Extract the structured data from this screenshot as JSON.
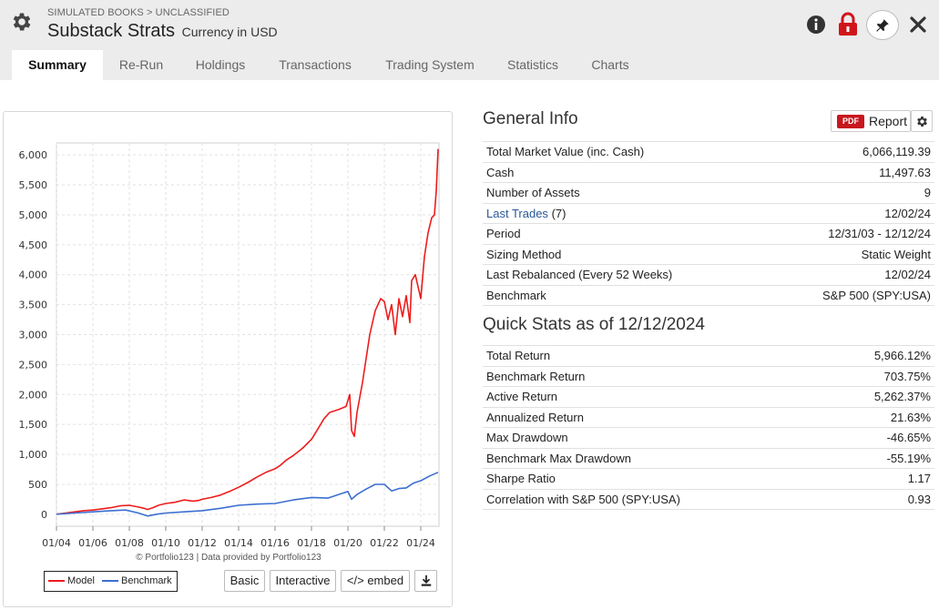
{
  "header": {
    "breadcrumb": "SIMULATED BOOKS > UNCLASSIFIED",
    "title": "Substack Strats",
    "currency": "Currency in USD"
  },
  "tabs": [
    "Summary",
    "Re-Run",
    "Holdings",
    "Transactions",
    "Trading System",
    "Statistics",
    "Charts"
  ],
  "chart": {
    "credit": "© Portfolio123 | Data provided by Portfolio123",
    "legend": {
      "model": "Model",
      "benchmark": "Benchmark"
    },
    "buttons": {
      "basic": "Basic",
      "interactive": "Interactive",
      "embed": "</> embed"
    }
  },
  "chart_data": {
    "type": "line",
    "title": "",
    "xlabel": "",
    "ylabel": "",
    "x_ticks": [
      "01/04",
      "01/06",
      "01/08",
      "01/10",
      "01/12",
      "01/14",
      "01/16",
      "01/18",
      "01/20",
      "01/22",
      "01/24"
    ],
    "y_ticks": [
      "0",
      "500",
      "1,000",
      "1,500",
      "2,000",
      "2,500",
      "3,000",
      "3,500",
      "4,000",
      "4,500",
      "5,000",
      "5,500",
      "6,000"
    ],
    "xlim": [
      2004.0,
      2025.0
    ],
    "ylim": [
      -200,
      6200
    ],
    "grid": true,
    "legend_position": "bottom-left",
    "series": [
      {
        "name": "Model",
        "color": "#ee1c1c",
        "x": [
          2004.0,
          2004.5,
          2005.0,
          2005.5,
          2006.0,
          2006.5,
          2007.0,
          2007.5,
          2008.0,
          2008.5,
          2008.8,
          2009.0,
          2009.3,
          2009.6,
          2010.0,
          2010.5,
          2011.0,
          2011.5,
          2011.8,
          2012.0,
          2012.5,
          2013.0,
          2013.5,
          2014.0,
          2014.5,
          2015.0,
          2015.5,
          2016.0,
          2016.3,
          2016.6,
          2017.0,
          2017.5,
          2018.0,
          2018.3,
          2018.7,
          2019.0,
          2019.5,
          2019.9,
          2020.1,
          2020.2,
          2020.35,
          2020.5,
          2020.8,
          2021.0,
          2021.2,
          2021.5,
          2021.8,
          2022.0,
          2022.2,
          2022.4,
          2022.6,
          2022.8,
          2023.0,
          2023.2,
          2023.4,
          2023.5,
          2023.7,
          2024.0,
          2024.2,
          2024.4,
          2024.6,
          2024.75,
          2024.85,
          2024.95
        ],
        "y": [
          0,
          20,
          40,
          60,
          70,
          90,
          110,
          140,
          150,
          120,
          100,
          80,
          110,
          150,
          180,
          200,
          240,
          220,
          230,
          250,
          280,
          320,
          380,
          450,
          530,
          620,
          700,
          760,
          820,
          900,
          980,
          1100,
          1250,
          1400,
          1600,
          1700,
          1750,
          1800,
          2000,
          1400,
          1300,
          1700,
          2200,
          2600,
          3000,
          3400,
          3600,
          3550,
          3250,
          3500,
          3000,
          3600,
          3300,
          3650,
          3200,
          3900,
          4000,
          3600,
          4300,
          4700,
          4950,
          5000,
          5400,
          6100
        ]
      },
      {
        "name": "Benchmark",
        "color": "#3c6fd1",
        "x": [
          2004.0,
          2005.0,
          2006.0,
          2007.0,
          2007.8,
          2008.5,
          2009.0,
          2009.5,
          2010.0,
          2011.0,
          2012.0,
          2013.0,
          2014.0,
          2015.0,
          2016.0,
          2017.0,
          2018.0,
          2018.9,
          2019.5,
          2020.0,
          2020.2,
          2020.5,
          2021.0,
          2021.5,
          2022.0,
          2022.4,
          2022.8,
          2023.2,
          2023.6,
          2024.0,
          2024.5,
          2024.95
        ],
        "y": [
          0,
          20,
          40,
          60,
          70,
          20,
          -30,
          0,
          20,
          40,
          60,
          100,
          150,
          170,
          180,
          240,
          280,
          270,
          330,
          380,
          250,
          330,
          420,
          500,
          500,
          390,
          430,
          440,
          520,
          560,
          640,
          700
        ]
      }
    ]
  },
  "general_info": {
    "title": "General Info",
    "pdf_badge": "PDF",
    "report_label": "Report",
    "rows": [
      {
        "label": "Total Market Value (inc. Cash)",
        "value": "6,066,119.39"
      },
      {
        "label": "Cash",
        "value": "11,497.63"
      },
      {
        "label": "Number of Assets",
        "value": "9"
      },
      {
        "label": "Last Trades",
        "label_suffix": "(7)",
        "value": "12/02/24",
        "link": true
      },
      {
        "label": "Period",
        "value": "12/31/03 - 12/12/24"
      },
      {
        "label": "Sizing Method",
        "value": "Static Weight"
      },
      {
        "label": "Last Rebalanced (Every 52 Weeks)",
        "value": "12/02/24"
      },
      {
        "label": "Benchmark",
        "value": "S&P 500 (SPY:USA)"
      }
    ]
  },
  "quick_stats": {
    "title": "Quick Stats as of 12/12/2024",
    "rows": [
      {
        "label": "Total Return",
        "value": "5,966.12%"
      },
      {
        "label": "Benchmark Return",
        "value": "703.75%"
      },
      {
        "label": "Active Return",
        "value": "5,262.37%"
      },
      {
        "label": "Annualized Return",
        "value": "21.63%"
      },
      {
        "label": "Max Drawdown",
        "value": "-46.65%",
        "negative": true
      },
      {
        "label": "Benchmark Max Drawdown",
        "value": "-55.19%",
        "negative": true
      },
      {
        "label": "Sharpe Ratio",
        "value": "1.17"
      },
      {
        "label": "Correlation with S&P 500 (SPY:USA)",
        "value": "0.93"
      }
    ]
  }
}
